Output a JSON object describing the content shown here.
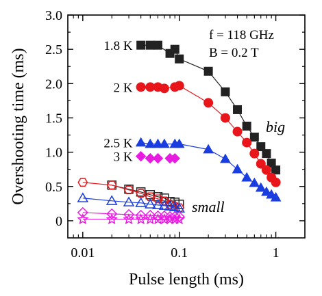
{
  "chart_data": {
    "type": "scatter",
    "xlabel": "Pulse length (ms)",
    "ylabel": "Overshooting time (ms)",
    "xscale": "log",
    "xlim": [
      0.007,
      2
    ],
    "ylim": [
      -0.25,
      3.0
    ],
    "x_ticks": [
      0.01,
      0.1,
      1
    ],
    "x_tick_labels": [
      "0.01",
      "0.1",
      "1"
    ],
    "y_ticks": [
      0,
      0.5,
      1.0,
      1.5,
      2.0,
      2.5,
      3.0
    ],
    "y_tick_labels": [
      "0",
      "0.5",
      "1.0",
      "1.5",
      "2.0",
      "2.5",
      "3.0"
    ],
    "grid": false,
    "annotations": {
      "freq": "f = 118 GHz",
      "field": "B = 0.2 T",
      "big": "big",
      "small": "small"
    },
    "series": [
      {
        "name": "1.8 K",
        "color": "#222222",
        "marker": "square",
        "filled": true,
        "connected": true,
        "points": [
          [
            0.04,
            2.56
          ],
          [
            0.05,
            2.56
          ],
          [
            0.06,
            2.56
          ],
          [
            0.08,
            2.44
          ],
          [
            0.09,
            2.5
          ],
          [
            0.1,
            2.36
          ],
          [
            0.2,
            2.18
          ],
          [
            0.3,
            1.88
          ],
          [
            0.4,
            1.62
          ],
          [
            0.5,
            1.38
          ],
          [
            0.6,
            1.22
          ],
          [
            0.7,
            1.08
          ],
          [
            0.8,
            0.98
          ],
          [
            0.9,
            0.84
          ],
          [
            1.0,
            0.74
          ]
        ]
      },
      {
        "name": "2 K",
        "color": "#e8161b",
        "marker": "circle",
        "filled": true,
        "connected": true,
        "points": [
          [
            0.04,
            1.95
          ],
          [
            0.05,
            1.95
          ],
          [
            0.06,
            1.95
          ],
          [
            0.07,
            1.93
          ],
          [
            0.09,
            1.95
          ],
          [
            0.1,
            1.97
          ],
          [
            0.2,
            1.72
          ],
          [
            0.3,
            1.5
          ],
          [
            0.4,
            1.3
          ],
          [
            0.5,
            1.14
          ],
          [
            0.6,
            0.98
          ],
          [
            0.7,
            0.83
          ],
          [
            0.8,
            0.74
          ],
          [
            0.9,
            0.63
          ],
          [
            1.0,
            0.56
          ]
        ]
      },
      {
        "name": "2.5 K",
        "color": "#1a3de0",
        "marker": "triangle",
        "filled": true,
        "connected": true,
        "points": [
          [
            0.04,
            1.14
          ],
          [
            0.05,
            1.12
          ],
          [
            0.06,
            1.12
          ],
          [
            0.07,
            1.12
          ],
          [
            0.09,
            1.12
          ],
          [
            0.1,
            1.12
          ],
          [
            0.2,
            1.04
          ],
          [
            0.3,
            0.9
          ],
          [
            0.4,
            0.75
          ],
          [
            0.5,
            0.63
          ],
          [
            0.6,
            0.55
          ],
          [
            0.7,
            0.48
          ],
          [
            0.8,
            0.42
          ],
          [
            0.9,
            0.38
          ],
          [
            1.0,
            0.34
          ]
        ]
      },
      {
        "name": "3 K",
        "color": "#e81ce0",
        "marker": "diamond",
        "filled": true,
        "connected": false,
        "points": [
          [
            0.04,
            0.94
          ],
          [
            0.05,
            0.91
          ],
          [
            0.06,
            0.91
          ],
          [
            0.08,
            0.91
          ],
          [
            0.09,
            0.91
          ]
        ]
      },
      {
        "name": "",
        "color": "#222222",
        "marker": "square",
        "filled": false,
        "connected": true,
        "points": [
          [
            0.02,
            0.52
          ],
          [
            0.03,
            0.46
          ],
          [
            0.04,
            0.42
          ],
          [
            0.05,
            0.38
          ],
          [
            0.06,
            0.35
          ],
          [
            0.07,
            0.33
          ],
          [
            0.08,
            0.28
          ],
          [
            0.09,
            0.27
          ],
          [
            0.1,
            0.24
          ]
        ]
      },
      {
        "name": "",
        "color": "#e8161b",
        "marker": "hexagon",
        "filled": false,
        "connected": true,
        "points": [
          [
            0.01,
            0.56
          ],
          [
            0.02,
            0.52
          ],
          [
            0.03,
            0.45
          ],
          [
            0.04,
            0.4
          ],
          [
            0.05,
            0.35
          ],
          [
            0.06,
            0.32
          ],
          [
            0.07,
            0.29
          ],
          [
            0.08,
            0.24
          ],
          [
            0.09,
            0.21
          ],
          [
            0.1,
            0.19
          ]
        ]
      },
      {
        "name": "",
        "color": "#1a3de0",
        "marker": "triangle",
        "filled": false,
        "connected": true,
        "points": [
          [
            0.01,
            0.33
          ],
          [
            0.02,
            0.29
          ],
          [
            0.03,
            0.27
          ],
          [
            0.04,
            0.26
          ],
          [
            0.05,
            0.24
          ],
          [
            0.06,
            0.23
          ],
          [
            0.07,
            0.22
          ],
          [
            0.08,
            0.21
          ],
          [
            0.09,
            0.2
          ],
          [
            0.1,
            0.18
          ]
        ]
      },
      {
        "name": "",
        "color": "#e81ce0",
        "marker": "diamond",
        "filled": false,
        "connected": true,
        "points": [
          [
            0.01,
            0.12
          ],
          [
            0.02,
            0.1
          ],
          [
            0.03,
            0.09
          ],
          [
            0.04,
            0.08
          ],
          [
            0.05,
            0.08
          ],
          [
            0.06,
            0.07
          ],
          [
            0.07,
            0.07
          ],
          [
            0.08,
            0.06
          ],
          [
            0.09,
            0.06
          ],
          [
            0.1,
            0.06
          ]
        ]
      },
      {
        "name": "",
        "color": "#e81ce0",
        "marker": "star",
        "filled": false,
        "connected": true,
        "points": [
          [
            0.01,
            0.02
          ],
          [
            0.02,
            0.02
          ],
          [
            0.03,
            0.02
          ],
          [
            0.04,
            0.02
          ],
          [
            0.05,
            0.02
          ],
          [
            0.06,
            0.02
          ],
          [
            0.07,
            0.02
          ],
          [
            0.08,
            0.02
          ],
          [
            0.09,
            0.02
          ],
          [
            0.1,
            0.02
          ]
        ]
      }
    ]
  }
}
